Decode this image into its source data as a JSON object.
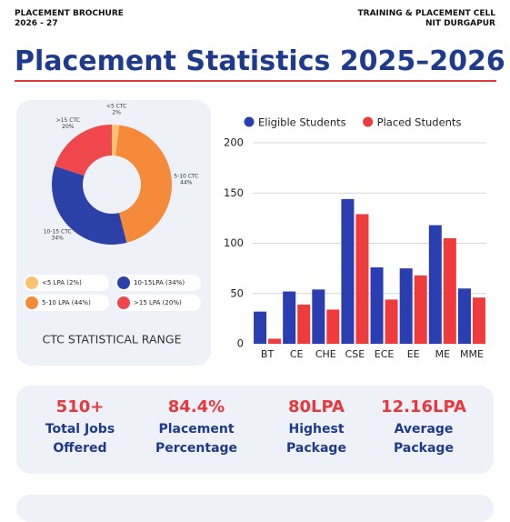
{
  "header": {
    "left_line1": "PLACEMENT BROCHURE",
    "left_line2": "2026 - 27",
    "right_line1": "TRAINING & PLACEMENT CELL",
    "right_line2": "NIT DURGAPUR",
    "title": "Placement Statistics 2025–2026"
  },
  "chart_data": [
    {
      "type": "donut",
      "subtitle": "CTC STATISTICAL RANGE",
      "categories": [
        "<5 CTC",
        "5-10 CTC",
        "10-15 CTC",
        ">15 CTC"
      ],
      "values": [
        2,
        44,
        34,
        20
      ],
      "value_labels": [
        "2%",
        "44%",
        "34%",
        "20%"
      ],
      "legend_labels": [
        "<5 LPA (2%)",
        "5-10 LPA (44%)",
        "10-15LPA (34%)",
        ">15 LPA (20%)"
      ],
      "colors": [
        "#f9c270",
        "#f58a3a",
        "#2b41a8",
        "#f0474d"
      ]
    },
    {
      "type": "bar",
      "categories": [
        "BT",
        "CE",
        "CHE",
        "CSE",
        "ECE",
        "EE",
        "ME",
        "MME"
      ],
      "series": [
        {
          "name": "Eligible Students",
          "color": "#2a3eb1",
          "values": [
            32,
            52,
            54,
            144,
            76,
            75,
            118,
            55
          ]
        },
        {
          "name": "Placed Students",
          "color": "#ef3b3b",
          "values": [
            5,
            39,
            34,
            129,
            44,
            68,
            105,
            46
          ]
        }
      ],
      "ylim": [
        0,
        200
      ],
      "yticks": [
        0,
        50,
        100,
        150,
        200
      ],
      "grid": true
    }
  ],
  "stats": [
    {
      "value": "510+",
      "label": "Total Jobs Offered"
    },
    {
      "value": "84.4%",
      "label": "Placement Percentage"
    },
    {
      "value": "80LPA",
      "label": "Highest Package"
    },
    {
      "value": "12.16LPA",
      "label": "Average Package"
    }
  ]
}
